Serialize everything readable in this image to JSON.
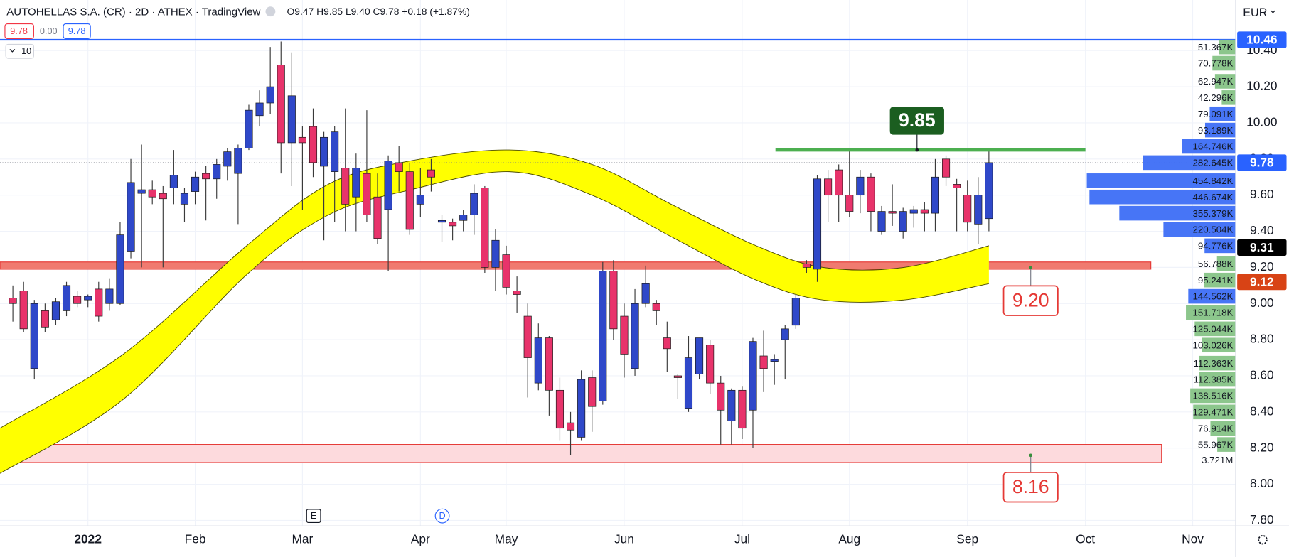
{
  "header": {
    "title": "AUTOHELLAS S.A. (CR) · 2D · ATHEX · TradingView",
    "ohlc": "O9.47 H9.85 L9.40 C9.78 +0.18 (+1.87%)",
    "bid": "9.78",
    "spread": "0.00",
    "ask": "9.78",
    "indicator": "10",
    "currency": "EUR",
    "markers": [
      "E",
      "D"
    ]
  },
  "chart_data": {
    "type": "candlestick",
    "open": [
      9.03,
      9.07,
      8.64,
      8.96,
      8.91,
      8.96,
      9.04,
      9.02,
      9.08,
      9.0,
      9.0,
      9.29,
      9.61,
      9.63,
      9.61,
      9.64,
      9.55,
      9.62,
      9.72,
      9.69,
      9.76,
      9.72,
      9.86,
      10.04,
      10.11,
      10.32,
      9.89,
      9.92,
      9.98,
      9.76,
      9.73,
      9.75,
      9.59,
      9.72,
      9.59,
      9.52,
      9.78,
      9.73,
      9.55,
      9.74,
      9.45,
      9.45,
      9.46,
      9.49,
      9.64,
      9.2,
      9.27,
      9.07,
      8.93,
      8.56,
      8.81,
      8.52,
      8.34,
      8.26,
      8.59,
      8.46,
      9.18,
      8.93,
      8.64,
      9.0,
      9.0,
      8.81,
      8.6,
      8.42,
      8.61,
      8.77,
      8.56,
      8.35,
      8.52,
      8.41,
      8.71,
      8.68,
      8.8,
      8.88,
      9.22,
      9.19,
      9.69,
      9.74,
      9.6,
      9.6,
      9.7,
      9.4,
      9.51,
      9.4,
      9.5,
      9.52,
      9.5,
      9.8,
      9.66,
      9.6,
      9.44,
      9.47
    ],
    "high": [
      9.1,
      9.12,
      9.02,
      9.0,
      9.03,
      9.12,
      9.07,
      9.05,
      9.12,
      9.14,
      9.45,
      9.8,
      9.88,
      9.68,
      9.65,
      9.85,
      9.64,
      9.73,
      9.76,
      9.8,
      9.86,
      9.88,
      10.1,
      10.18,
      10.42,
      10.45,
      10.39,
      9.98,
      10.08,
      9.95,
      9.98,
      10.08,
      9.83,
      10.07,
      9.72,
      9.82,
      9.87,
      9.78,
      9.75,
      9.8,
      9.49,
      9.47,
      9.52,
      9.66,
      9.65,
      9.41,
      9.32,
      9.15,
      9.0,
      8.89,
      8.82,
      8.59,
      8.4,
      8.63,
      8.63,
      9.23,
      9.24,
      9.0,
      9.08,
      9.21,
      9.02,
      8.9,
      8.61,
      8.82,
      8.81,
      8.8,
      8.6,
      8.53,
      8.54,
      8.81,
      8.85,
      8.72,
      8.88,
      9.05,
      9.24,
      9.71,
      9.74,
      9.77,
      9.85,
      9.74,
      9.72,
      9.54,
      9.66,
      9.53,
      9.54,
      9.56,
      9.8,
      9.82,
      9.69,
      9.68,
      9.7,
      9.85
    ],
    "low": [
      8.9,
      8.84,
      8.58,
      8.84,
      8.88,
      8.93,
      8.98,
      8.98,
      8.9,
      8.96,
      8.99,
      9.25,
      9.2,
      9.55,
      9.2,
      9.55,
      9.45,
      9.55,
      9.46,
      9.58,
      9.68,
      9.44,
      9.85,
      9.98,
      10.05,
      9.72,
      9.65,
      9.52,
      9.7,
      9.35,
      9.45,
      9.4,
      9.4,
      9.45,
      9.33,
      9.18,
      9.62,
      9.38,
      9.48,
      9.62,
      9.34,
      9.35,
      9.4,
      9.38,
      9.17,
      9.07,
      9.05,
      8.95,
      8.48,
      8.52,
      8.38,
      8.24,
      8.16,
      8.24,
      8.29,
      8.44,
      8.8,
      8.59,
      8.6,
      8.98,
      8.88,
      8.62,
      8.47,
      8.4,
      8.58,
      8.5,
      8.22,
      8.22,
      8.25,
      8.2,
      8.51,
      8.55,
      8.58,
      8.86,
      9.17,
      9.12,
      9.45,
      9.45,
      9.48,
      9.5,
      9.4,
      9.38,
      9.43,
      9.36,
      9.42,
      9.4,
      9.4,
      9.65,
      9.4,
      9.4,
      9.33,
      9.4
    ],
    "close": [
      9.0,
      8.86,
      9.0,
      8.87,
      9.01,
      9.1,
      9.0,
      9.04,
      8.93,
      9.08,
      9.38,
      9.67,
      9.63,
      9.59,
      9.58,
      9.71,
      9.61,
      9.7,
      9.69,
      9.77,
      9.84,
      9.86,
      10.07,
      10.11,
      10.2,
      9.89,
      10.15,
      9.89,
      9.78,
      9.92,
      9.95,
      9.55,
      9.75,
      9.49,
      9.36,
      9.79,
      9.73,
      9.41,
      9.6,
      9.7,
      9.46,
      9.43,
      9.49,
      9.61,
      9.2,
      9.35,
      9.09,
      9.05,
      8.7,
      8.81,
      8.52,
      8.31,
      8.3,
      8.58,
      8.43,
      9.18,
      8.86,
      8.72,
      9.0,
      9.11,
      8.96,
      8.75,
      8.59,
      8.7,
      8.81,
      8.56,
      8.41,
      8.52,
      8.31,
      8.79,
      8.64,
      8.69,
      8.86,
      9.03,
      9.2,
      9.69,
      9.6,
      9.6,
      9.51,
      9.7,
      9.51,
      9.51,
      9.5,
      9.51,
      9.52,
      9.5,
      9.7,
      9.7,
      9.64,
      9.45,
      9.6,
      9.78
    ],
    "up_color": "#2f48c9",
    "down_color": "#e8336b",
    "xlim": [
      -1.2,
      114
    ],
    "ylim": [
      7.77,
      10.68
    ],
    "xticks": [
      {
        "value": 7,
        "label": "2022"
      },
      {
        "value": 17,
        "label": "Feb"
      },
      {
        "value": 27,
        "label": "Mar"
      },
      {
        "value": 38,
        "label": "Apr"
      },
      {
        "value": 46,
        "label": "May"
      },
      {
        "value": 57,
        "label": "Jun"
      },
      {
        "value": 68,
        "label": "Jul"
      },
      {
        "value": 78,
        "label": "Aug"
      },
      {
        "value": 89,
        "label": "Sep"
      },
      {
        "value": 100,
        "label": "Oct"
      },
      {
        "value": 110,
        "label": "Nov"
      }
    ],
    "yticks": [
      {
        "value": 7.8,
        "label": "7.80"
      },
      {
        "value": 8.0,
        "label": "8.00"
      },
      {
        "value": 8.2,
        "label": "8.20"
      },
      {
        "value": 8.4,
        "label": "8.40"
      },
      {
        "value": 8.6,
        "label": "8.60"
      },
      {
        "value": 8.8,
        "label": "8.80"
      },
      {
        "value": 9.0,
        "label": "9.00"
      },
      {
        "value": 9.2,
        "label": "9.20"
      },
      {
        "value": 9.4,
        "label": "9.40"
      },
      {
        "value": 9.6,
        "label": "9.60"
      },
      {
        "value": 9.8,
        "label": "9.80"
      },
      {
        "value": 10.0,
        "label": "10.00"
      },
      {
        "value": 10.2,
        "label": "10.20"
      },
      {
        "value": 10.4,
        "label": "10.40"
      }
    ],
    "grid": true,
    "band": {
      "x": [
        -1.2,
        10.3,
        21.8,
        29.4,
        37.1,
        46.3,
        54,
        61.7,
        69.3,
        75.5,
        83.1,
        91
      ],
      "upper": [
        8.31,
        8.72,
        9.32,
        9.66,
        9.79,
        9.85,
        9.77,
        9.54,
        9.32,
        9.2,
        9.2,
        9.32
      ],
      "lower": [
        8.06,
        8.47,
        9.16,
        9.49,
        9.63,
        9.73,
        9.6,
        9.36,
        9.13,
        9.02,
        9.02,
        9.11
      ],
      "color": "#ffff00"
    },
    "zones": [
      {
        "from": 9.19,
        "to": 9.23,
        "x": [
          -1.2,
          106.1
        ],
        "color": "#f07a70",
        "border": "#e53935"
      },
      {
        "from": 8.12,
        "to": 8.22,
        "x": [
          0.15,
          107.1
        ],
        "color": "#fddadd",
        "border": "#e53935"
      }
    ],
    "lines": [
      {
        "value": 10.46,
        "x": [
          -1.2,
          114
        ],
        "color": "#2962ff"
      },
      {
        "value": 9.85,
        "x": [
          71.1,
          100
        ],
        "color": "#4caf50"
      }
    ],
    "levels": [
      {
        "value": 9.85,
        "x": 84.3,
        "style": "filled",
        "color": "#1b5e20"
      },
      {
        "value": 9.2,
        "label": "9.20",
        "x": 94.9,
        "style": "outline",
        "color": "#e53935"
      },
      {
        "value": 8.16,
        "x": 94.9,
        "style": "outline",
        "color": "#e53935"
      }
    ],
    "price_tags": [
      {
        "value": 10.46,
        "color": "#2962ff"
      },
      {
        "value": 9.78,
        "color": "#2962ff"
      },
      {
        "value": 9.31,
        "color": "#000000"
      },
      {
        "value": 9.12,
        "color": "#d84315"
      }
    ],
    "profile": {
      "prices": [
        10.42,
        10.33,
        10.23,
        10.14,
        10.05,
        9.96,
        9.87,
        9.78,
        9.68,
        9.59,
        9.5,
        9.41,
        9.32,
        9.22,
        9.13,
        9.04,
        8.95,
        8.86,
        8.77,
        8.67,
        8.58,
        8.49,
        8.4,
        8.31,
        8.22
      ],
      "values": [
        51367,
        70778,
        62947,
        42296,
        79091,
        93189,
        164746,
        282645,
        454842,
        446674,
        355379,
        220504,
        94776,
        56788,
        95241,
        144562,
        151718,
        125044,
        103026,
        112363,
        112385,
        138516,
        129471,
        76914,
        55967
      ],
      "value_labels": [
        "51.367K",
        "70.778K",
        "62.947K",
        "42.296K",
        "79.091K",
        "93.189K",
        "164.746K",
        "282.645K",
        "454.842K",
        "446.674K",
        "355.379K",
        "220.504K",
        "94.776K",
        "56.788K",
        "95.241K",
        "144.562K",
        "151.718K",
        "125.044K",
        "103.026K",
        "112.363K",
        "112.385K",
        "138.516K",
        "129.471K",
        "76.914K",
        "55.967K"
      ],
      "colors": [
        "#86c386",
        "#86c386",
        "#86c386",
        "#86c386",
        "#3d6ef5",
        "#3d6ef5",
        "#3d6ef5",
        "#3d6ef5",
        "#3d6ef5",
        "#3d6ef5",
        "#3d6ef5",
        "#3d6ef5",
        "#3d6ef5",
        "#86c386",
        "#86c386",
        "#3d6ef5",
        "#86c386",
        "#86c386",
        "#86c386",
        "#86c386",
        "#86c386",
        "#86c386",
        "#86c386",
        "#86c386",
        "#86c386"
      ],
      "total": 3721000,
      "total_label": "3.721M",
      "total_price": 8.13
    }
  }
}
